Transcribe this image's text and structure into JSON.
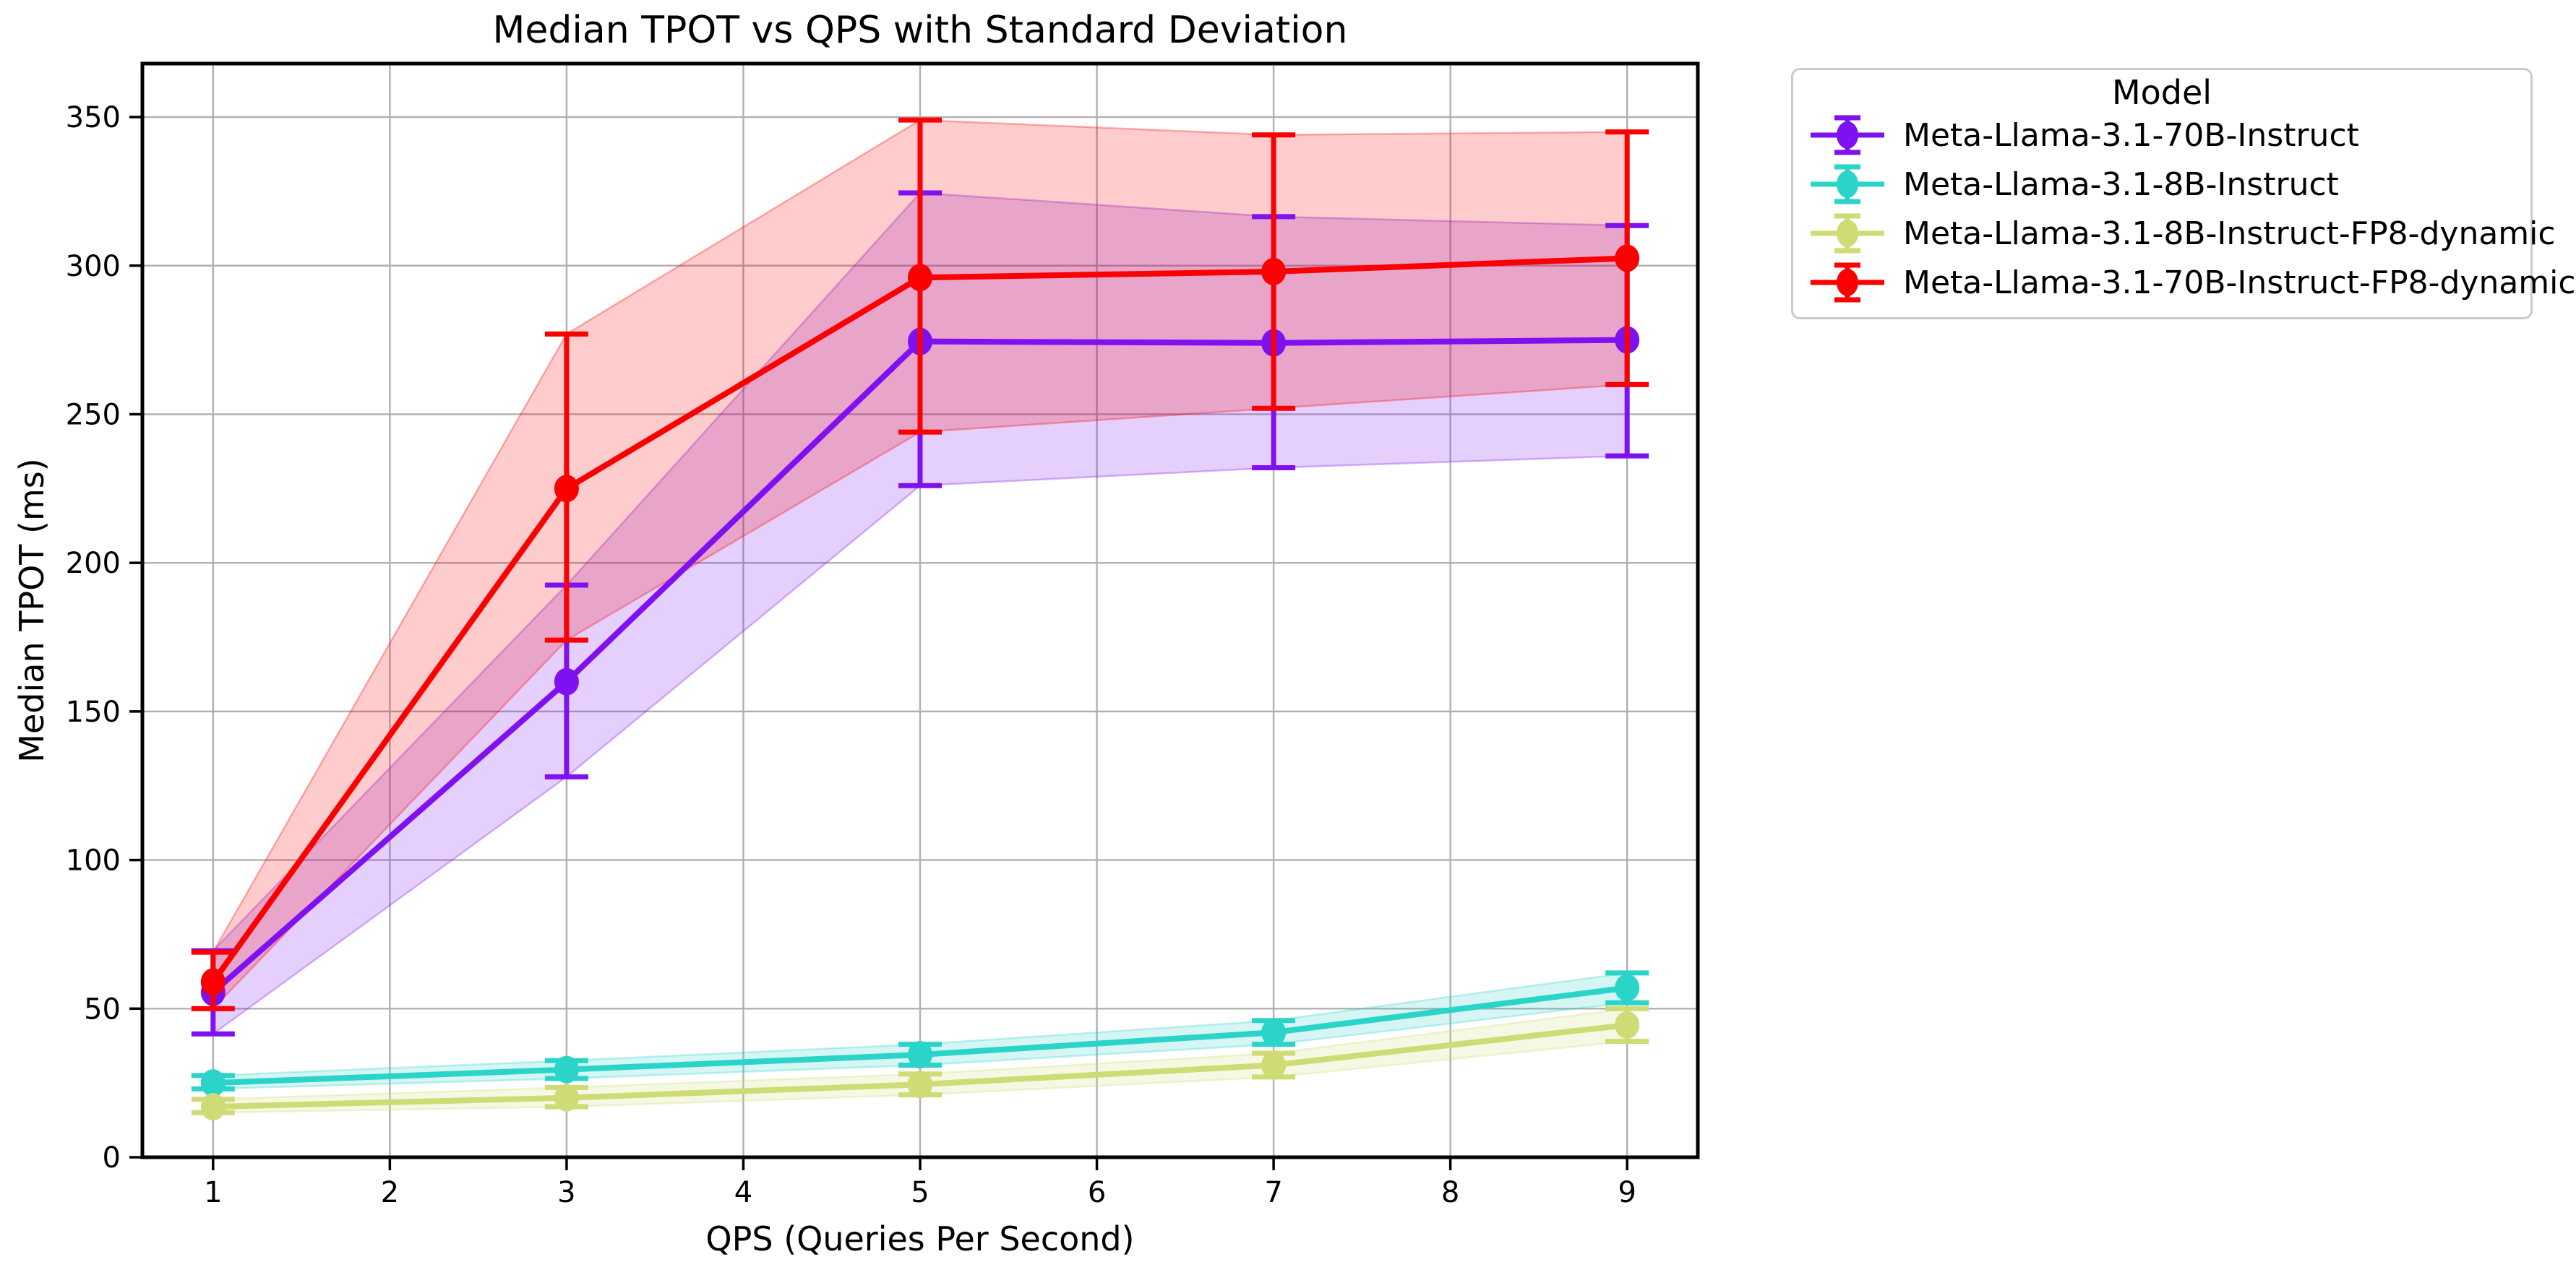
{
  "figure": {
    "background": "#ffffff",
    "grid_color": "#b0b0b0",
    "spine_color": "#000000",
    "text_color": "#000000"
  },
  "chart_data": {
    "type": "line",
    "title": "Median TPOT vs QPS with Standard Deviation",
    "xlabel": "QPS (Queries Per Second)",
    "ylabel": "Median TPOT (ms)",
    "legend_title": "Model",
    "legend_position": "outside upper right",
    "grid": true,
    "x_ticks": [
      1,
      2,
      3,
      4,
      5,
      6,
      7,
      8,
      9
    ],
    "y_ticks": [
      0,
      50,
      100,
      150,
      200,
      250,
      300,
      350
    ],
    "xlim": [
      0.6,
      9.4
    ],
    "ylim": [
      0,
      368
    ],
    "x": [
      1,
      3,
      5,
      7,
      9
    ],
    "series": [
      {
        "name": "Meta-Llama-3.1-70B-Instruct",
        "color": "#7F10F0",
        "median": [
          55.5,
          160,
          274.5,
          274,
          275
        ],
        "std_lower": [
          41.5,
          128,
          226,
          232,
          236
        ],
        "std_upper": [
          69.5,
          192.5,
          324.5,
          316.5,
          313.5
        ]
      },
      {
        "name": "Meta-Llama-3.1-8B-Instruct",
        "color": "#2BD4C8",
        "median": [
          25,
          29.5,
          34.5,
          42,
          57
        ],
        "std_lower": [
          23,
          26.5,
          31,
          38,
          52
        ],
        "std_upper": [
          27.5,
          32.5,
          38,
          46,
          62
        ]
      },
      {
        "name": "Meta-Llama-3.1-8B-Instruct-FP8-dynamic",
        "color": "#CFDB74",
        "median": [
          17,
          20,
          24.5,
          31,
          44.5
        ],
        "std_lower": [
          15,
          17,
          21,
          27,
          39
        ],
        "std_upper": [
          19.5,
          23.5,
          28,
          35,
          50
        ]
      },
      {
        "name": "Meta-Llama-3.1-70B-Instruct-FP8-dynamic",
        "color": "#FB0000",
        "median": [
          59,
          225,
          296,
          298,
          302.5
        ],
        "std_lower": [
          50,
          174,
          244,
          252,
          260
        ],
        "std_upper": [
          69,
          277,
          349,
          344,
          345
        ]
      }
    ]
  }
}
